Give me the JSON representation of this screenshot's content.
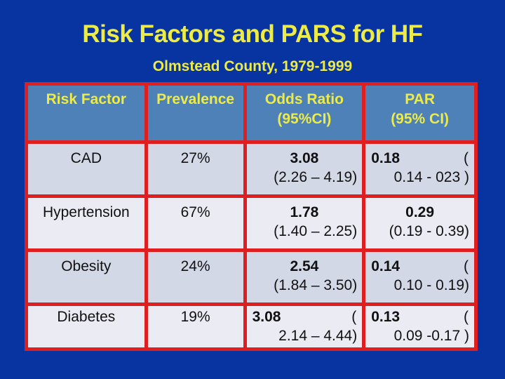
{
  "slide": {
    "title": "Risk Factors and PARS for HF",
    "subtitle": "Olmstead County, 1979-1999"
  },
  "colors": {
    "slide_background": "#0834A2",
    "title_yellow": "#EDEB46",
    "table_border_red": "#DF1F1F",
    "header_blue": "#4F81B9",
    "row_dark": "#D3D8E6",
    "row_light": "#EAEBF3",
    "body_text": "#111111"
  },
  "table": {
    "headers": [
      {
        "line1": "Risk Factor",
        "line2": ""
      },
      {
        "line1": "Prevalence",
        "line2": ""
      },
      {
        "line1": "Odds Ratio",
        "line2": "(95%CI)"
      },
      {
        "line1": "PAR",
        "line2": "(95% CI)"
      }
    ],
    "rows": [
      {
        "risk_factor": "CAD",
        "prevalence": "27%",
        "odds_ratio": {
          "value": "3.08",
          "paren": "",
          "ci": "(2.26 – 4.19)"
        },
        "par": {
          "value": "0.18",
          "paren": "(",
          "ci": "0.14 - 023 )"
        }
      },
      {
        "risk_factor": "Hypertension",
        "prevalence": "67%",
        "odds_ratio": {
          "value": "1.78",
          "paren": "",
          "ci": "(1.40 – 2.25)"
        },
        "par": {
          "value": "0.29",
          "paren": "",
          "ci": "(0.19 - 0.39)"
        }
      },
      {
        "risk_factor": "Obesity",
        "prevalence": "24%",
        "odds_ratio": {
          "value": "2.54",
          "paren": "",
          "ci": "(1.84 – 3.50)"
        },
        "par": {
          "value": "0.14",
          "paren": "(",
          "ci": "0.10 - 0.19)"
        }
      },
      {
        "risk_factor": "Diabetes",
        "prevalence": "19%",
        "odds_ratio": {
          "value": "3.08",
          "paren": "(",
          "ci": "2.14 – 4.44)"
        },
        "par": {
          "value": "0.13",
          "paren": "(",
          "ci": "0.09 -0.17 )"
        }
      }
    ]
  }
}
